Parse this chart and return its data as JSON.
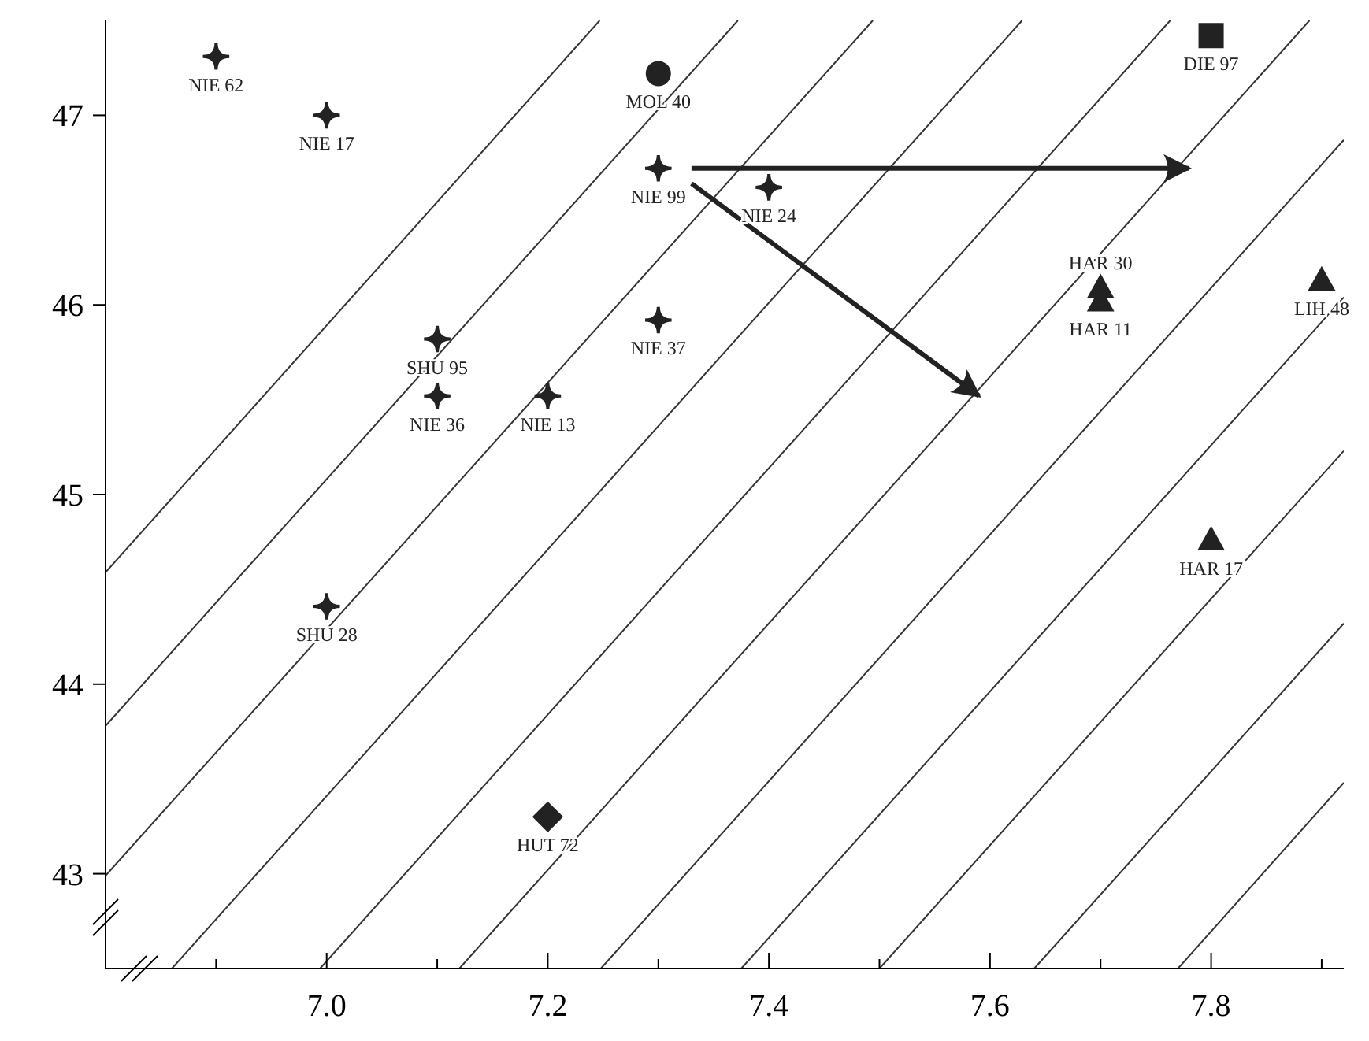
{
  "chart_data": {
    "type": "scatter",
    "xlim": [
      6.8,
      7.92
    ],
    "ylim": [
      42.5,
      47.5
    ],
    "xticks": [
      {
        "value": 6.9,
        "label": null
      },
      {
        "value": 7.0,
        "label": "7.0"
      },
      {
        "value": 7.1,
        "label": null
      },
      {
        "value": 7.2,
        "label": "7.2"
      },
      {
        "value": 7.3,
        "label": null
      },
      {
        "value": 7.4,
        "label": "7.4"
      },
      {
        "value": 7.5,
        "label": null
      },
      {
        "value": 7.6,
        "label": "7.6"
      },
      {
        "value": 7.7,
        "label": null
      },
      {
        "value": 7.8,
        "label": "7.8"
      },
      {
        "value": 7.9,
        "label": null
      }
    ],
    "yticks": [
      43,
      44,
      45,
      46,
      47
    ],
    "grid": false,
    "legend": false,
    "series": [
      {
        "type": "line",
        "color": "#333333",
        "marker": "none",
        "x": [
          6.8,
          7.247
        ],
        "values": [
          44.59,
          47.5
        ]
      },
      {
        "type": "line",
        "color": "#333333",
        "marker": "none",
        "x": [
          6.8,
          7.372
        ],
        "values": [
          43.78,
          47.5
        ]
      },
      {
        "type": "line",
        "color": "#333333",
        "marker": "none",
        "x": [
          6.8,
          7.494
        ],
        "values": [
          42.99,
          47.5
        ]
      },
      {
        "type": "line",
        "color": "#333333",
        "marker": "none",
        "x": [
          6.86,
          7.629
        ],
        "values": [
          42.5,
          47.5
        ]
      },
      {
        "type": "line",
        "color": "#333333",
        "marker": "none",
        "x": [
          6.994,
          7.763
        ],
        "values": [
          42.5,
          47.5
        ]
      },
      {
        "type": "line",
        "color": "#333333",
        "marker": "none",
        "x": [
          7.12,
          7.889
        ],
        "values": [
          42.5,
          47.5
        ]
      },
      {
        "type": "line",
        "color": "#333333",
        "marker": "none",
        "x": [
          7.248,
          7.92
        ],
        "values": [
          42.5,
          46.87
        ]
      },
      {
        "type": "line",
        "color": "#333333",
        "marker": "none",
        "x": [
          7.375,
          7.92
        ],
        "values": [
          42.5,
          46.04
        ]
      },
      {
        "type": "line",
        "color": "#333333",
        "marker": "none",
        "x": [
          7.5,
          7.92
        ],
        "values": [
          42.5,
          45.23
        ]
      },
      {
        "type": "line",
        "color": "#333333",
        "marker": "none",
        "x": [
          7.64,
          7.92
        ],
        "values": [
          42.5,
          44.32
        ]
      },
      {
        "type": "line",
        "color": "#333333",
        "marker": "none",
        "x": [
          7.77,
          7.92
        ],
        "values": [
          42.5,
          43.48
        ]
      },
      {
        "color": "#222222",
        "marker": "star",
        "x": [
          6.9,
          7.0,
          7.3,
          7.4,
          7.3,
          7.1,
          7.2
        ],
        "values": [
          47.31,
          47.0,
          46.72,
          46.62,
          45.92,
          45.52,
          45.52
        ]
      },
      {
        "color": "#222222",
        "marker": "star",
        "x": [
          7.1,
          7.0
        ],
        "values": [
          45.82,
          44.41
        ]
      },
      {
        "color": "#222222",
        "marker": "circle",
        "x": [
          7.3
        ],
        "values": [
          47.22
        ]
      },
      {
        "color": "#222222",
        "marker": "square",
        "x": [
          7.8
        ],
        "values": [
          47.42
        ]
      },
      {
        "color": "#222222",
        "marker": "triangle",
        "x": [
          7.7,
          7.7,
          7.8
        ],
        "values": [
          46.09,
          46.02,
          44.76
        ]
      },
      {
        "color": "#222222",
        "marker": "triangle",
        "x": [
          7.9
        ],
        "values": [
          46.13
        ]
      },
      {
        "color": "#222222",
        "marker": "diamond",
        "x": [
          7.2
        ],
        "values": [
          43.3
        ]
      },
      {
        "type": "line",
        "color": "#222222",
        "marker": "none",
        "x": [
          7.33,
          7.78
        ],
        "values": [
          46.72,
          46.72
        ]
      },
      {
        "type": "line",
        "color": "#222222",
        "marker": "none",
        "x": [
          7.33,
          7.59
        ],
        "values": [
          46.64,
          45.52
        ]
      }
    ],
    "annotations": [
      {
        "text": "NIE 62",
        "x": 6.9,
        "y": 47.31
      },
      {
        "text": "NIE 17",
        "x": 7.0,
        "y": 47.0
      },
      {
        "text": "MOL 40",
        "x": 7.3,
        "y": 47.22
      },
      {
        "text": "DIE 97",
        "x": 7.8,
        "y": 47.42
      },
      {
        "text": "NIE 99",
        "x": 7.3,
        "y": 46.72
      },
      {
        "text": "NIE 24",
        "x": 7.4,
        "y": 46.62
      },
      {
        "text": "HAR 30",
        "x": 7.7,
        "y": 46.09
      },
      {
        "text": "HAR 11",
        "x": 7.7,
        "y": 46.02
      },
      {
        "text": "LIH 48",
        "x": 7.9,
        "y": 46.13
      },
      {
        "text": "SHU 95",
        "x": 7.1,
        "y": 45.82
      },
      {
        "text": "NIE 37",
        "x": 7.3,
        "y": 45.92
      },
      {
        "text": "NIE 36",
        "x": 7.1,
        "y": 45.52
      },
      {
        "text": "NIE 13",
        "x": 7.2,
        "y": 45.52
      },
      {
        "text": "HAR 17",
        "x": 7.8,
        "y": 44.76
      },
      {
        "text": "SHU 28",
        "x": 7.0,
        "y": 44.41
      },
      {
        "text": "HUT 72",
        "x": 7.2,
        "y": 43.3
      }
    ]
  }
}
